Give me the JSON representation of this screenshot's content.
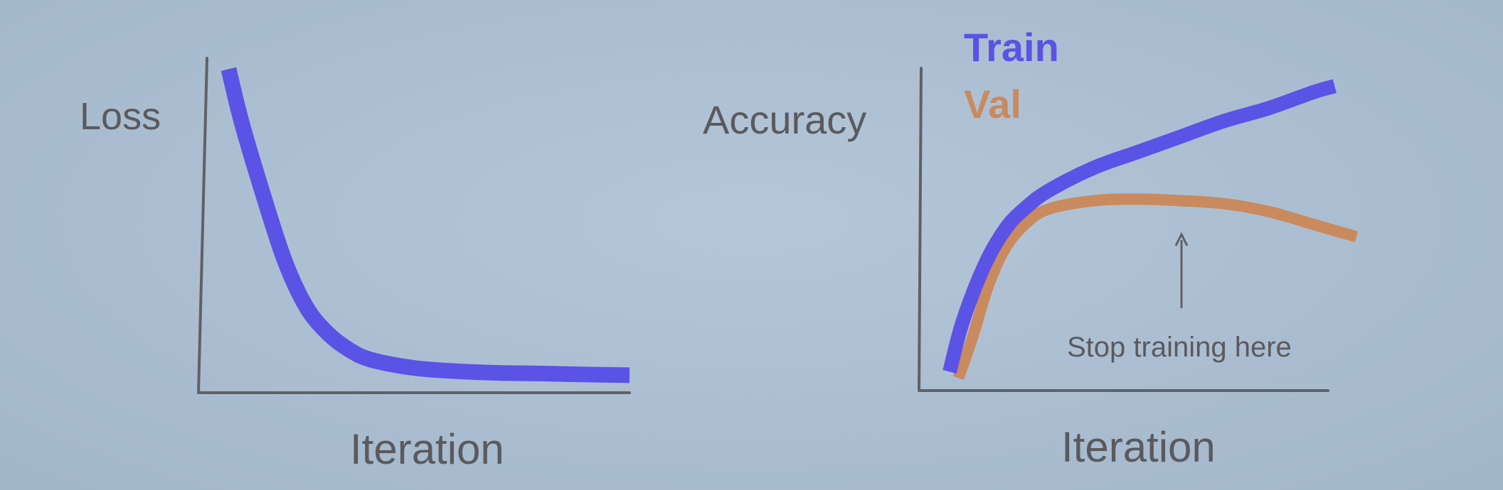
{
  "colors": {
    "background": "#aec1d4",
    "axis": "#5f6166",
    "train": "#5b52e6",
    "val": "#c98a5e",
    "text": "#5a5a5e"
  },
  "chart_data": [
    {
      "type": "line",
      "title": "",
      "xlabel": "Iteration",
      "ylabel": "Loss",
      "xlim": [
        0,
        100
      ],
      "ylim": [
        0,
        100
      ],
      "grid": false,
      "series": [
        {
          "color": "#5b52e6",
          "x": [
            7,
            10,
            15,
            20,
            25,
            30,
            35,
            40,
            50,
            60,
            70,
            80,
            90,
            100
          ],
          "values": [
            98,
            82,
            60,
            40,
            26,
            18,
            13,
            10,
            7.5,
            6.5,
            6,
            5.8,
            5.5,
            5.3
          ]
        }
      ]
    },
    {
      "type": "line",
      "title": "",
      "xlabel": "Iteration",
      "ylabel": "Accuracy",
      "xlim": [
        0,
        100
      ],
      "ylim": [
        0,
        100
      ],
      "grid": false,
      "legend": {
        "position": "top-left",
        "entries": [
          "Train",
          "Val"
        ]
      },
      "series": [
        {
          "name": "Train",
          "color": "#5b52e6",
          "x": [
            7,
            10,
            15,
            20,
            25,
            30,
            40,
            50,
            60,
            70,
            80,
            90,
            95
          ],
          "values": [
            6,
            22,
            40,
            52,
            59,
            64,
            71,
            76,
            81,
            86,
            90,
            95,
            97
          ]
        },
        {
          "name": "Val",
          "color": "#c98a5e",
          "x": [
            9,
            12,
            16,
            20,
            25,
            30,
            40,
            50,
            60,
            70,
            80,
            90,
            100
          ],
          "values": [
            4,
            16,
            34,
            46,
            54,
            58,
            60.5,
            61,
            60.5,
            59.5,
            57,
            53,
            49
          ]
        }
      ],
      "annotations": [
        {
          "text": "Stop training here",
          "arrow_to_x": 60
        }
      ]
    }
  ]
}
